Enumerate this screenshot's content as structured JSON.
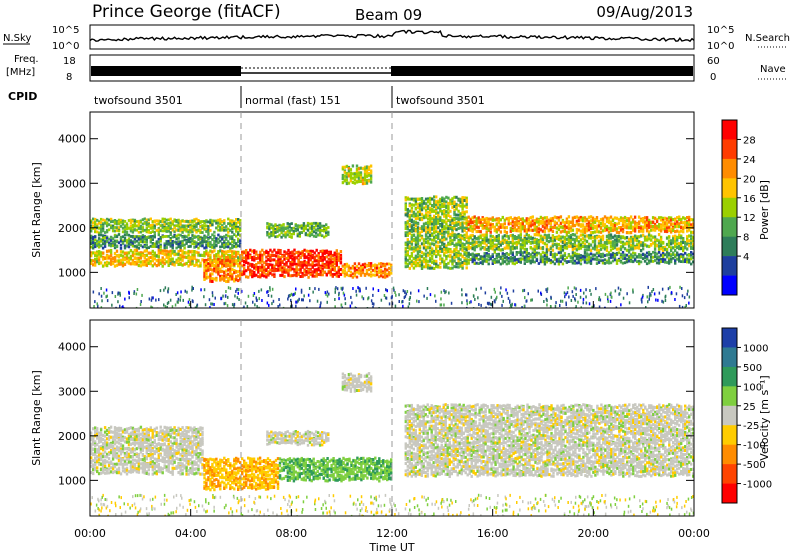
{
  "header": {
    "station": "Prince George (fitACF)",
    "beam": "Beam 09",
    "date": "09/Aug/2013"
  },
  "noise_panel": {
    "left_label": "N.Sky",
    "right_label": "N.Search",
    "left_ticks": [
      "10^5",
      "10^0"
    ],
    "right_ticks": [
      "10^5",
      "10^0"
    ]
  },
  "freq_panel": {
    "left_label_line1": "Freq.",
    "left_label_line2": "[MHz]",
    "left_ticks": [
      "18",
      "8"
    ],
    "right_label": "Nave",
    "right_ticks": [
      "60",
      "0"
    ]
  },
  "cpid_panel": {
    "label": "CPID",
    "segments": [
      {
        "text": "twofsound 3501",
        "start_hour": 0,
        "end_hour": 6
      },
      {
        "text": "normal (fast) 151",
        "start_hour": 6,
        "end_hour": 12
      },
      {
        "text": "twofsound 3501",
        "start_hour": 12,
        "end_hour": 24
      }
    ]
  },
  "power_panel": {
    "ylabel": "Slant Range [km]",
    "colorbar_label": "Power [dB]",
    "colorbar_ticks": [
      "28",
      "24",
      "20",
      "16",
      "12",
      "8",
      "4"
    ],
    "colorbar_colors": [
      "#ff0000",
      "#ff3c00",
      "#ff8c00",
      "#ffc400",
      "#9bd000",
      "#4fa84f",
      "#2e7d5a",
      "#1e3f9e",
      "#0000ff"
    ]
  },
  "velocity_panel": {
    "ylabel": "Slant Range [km]",
    "colorbar_label": "Velocity [m s⁻¹]",
    "colorbar_ticks": [
      "1000",
      "500",
      "100",
      "25",
      "-25",
      "-100",
      "-500",
      "-1000"
    ],
    "colorbar_colors": [
      "#1d3fa8",
      "#2f7a92",
      "#2f9a5a",
      "#7fcf3f",
      "#c8c8c0",
      "#ffcc00",
      "#ff8c00",
      "#ff4400",
      "#ff0000"
    ]
  },
  "x_axis": {
    "label": "Time UT",
    "ticks": [
      "00:00",
      "04:00",
      "08:00",
      "12:00",
      "16:00",
      "20:00",
      "00:00"
    ]
  },
  "chart_data": {
    "type": "heatmap",
    "title": "Prince George (fitACF)  Beam 09  09/Aug/2013",
    "xlabel": "Time UT",
    "ylabel": "Slant Range [km]",
    "xlim_hours": [
      0,
      24
    ],
    "ylim_km": [
      200,
      4600
    ],
    "y_ticks_km": [
      1000,
      2000,
      3000,
      4000
    ],
    "x_ticks": [
      "00:00",
      "04:00",
      "08:00",
      "12:00",
      "16:00",
      "20:00",
      "00:00"
    ],
    "mode_change_hours": [
      6,
      12
    ],
    "power_range_db": [
      0,
      30
    ],
    "velocity_range_ms": [
      -1000,
      1000
    ],
    "power_regions": [
      {
        "t0": 0.0,
        "t1": 6.0,
        "r0": 1900,
        "r1": 2200,
        "power_db": 14
      },
      {
        "t0": 0.0,
        "t1": 6.0,
        "r0": 1550,
        "r1": 1850,
        "power_db": 10
      },
      {
        "t0": 0.0,
        "t1": 6.0,
        "r0": 1150,
        "r1": 1500,
        "power_db": 18
      },
      {
        "t0": 4.5,
        "t1": 6.0,
        "r0": 800,
        "r1": 1300,
        "power_db": 22
      },
      {
        "t0": 6.0,
        "t1": 10.0,
        "r0": 900,
        "r1": 1500,
        "power_db": 26
      },
      {
        "t0": 10.0,
        "t1": 12.0,
        "r0": 900,
        "r1": 1200,
        "power_db": 22
      },
      {
        "t0": 7.0,
        "t1": 9.5,
        "r0": 1800,
        "r1": 2100,
        "power_db": 12
      },
      {
        "t0": 10.0,
        "t1": 11.2,
        "r0": 3000,
        "r1": 3400,
        "power_db": 16
      },
      {
        "t0": 12.5,
        "t1": 15.0,
        "r0": 1100,
        "r1": 2700,
        "power_db": 14
      },
      {
        "t0": 15.0,
        "t1": 24.0,
        "r0": 1900,
        "r1": 2250,
        "power_db": 20
      },
      {
        "t0": 15.0,
        "t1": 24.0,
        "r0": 1500,
        "r1": 1850,
        "power_db": 14
      },
      {
        "t0": 15.0,
        "t1": 24.0,
        "r0": 1200,
        "r1": 1450,
        "power_db": 10
      }
    ],
    "velocity_regions": [
      {
        "t0": 0.0,
        "t1": 4.5,
        "r0": 1150,
        "r1": 2200,
        "velocity_ms": 0
      },
      {
        "t0": 4.5,
        "t1": 7.5,
        "r0": 800,
        "r1": 1500,
        "velocity_ms": -300
      },
      {
        "t0": 7.5,
        "t1": 12.0,
        "r0": 1000,
        "r1": 1500,
        "velocity_ms": 300
      },
      {
        "t0": 7.0,
        "t1": 9.5,
        "r0": 1800,
        "r1": 2100,
        "velocity_ms": 0
      },
      {
        "t0": 10.0,
        "t1": 11.2,
        "r0": 3000,
        "r1": 3400,
        "velocity_ms": 0
      },
      {
        "t0": 12.5,
        "t1": 24.0,
        "r0": 1100,
        "r1": 2700,
        "velocity_ms": 0
      }
    ]
  }
}
